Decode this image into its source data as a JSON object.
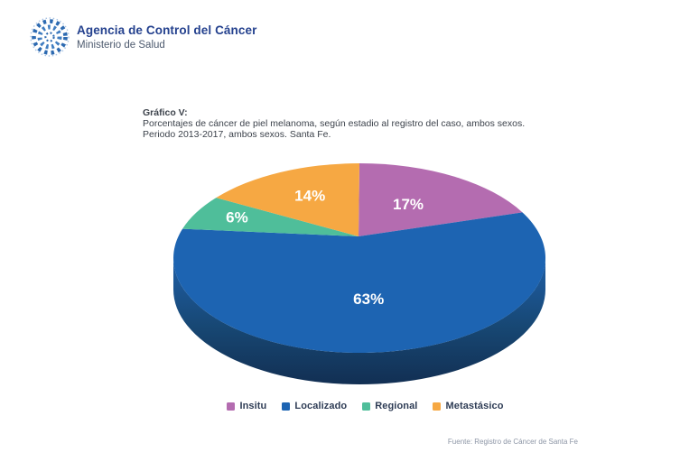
{
  "header": {
    "title": "Agencia de Control del Cáncer",
    "subtitle": "Ministerio de Salud"
  },
  "chart": {
    "heading": "Gráfico V:",
    "description_line1": "Porcentajes de cáncer de piel melanoma, según estadio al registro del caso, ambos sexos.",
    "description_line2": "Periodo 2013-2017, ambos sexos. Santa Fe.",
    "source": "Fuente: Registro de Cáncer de Santa Fe"
  },
  "chart_data": {
    "type": "pie",
    "style": "3d",
    "title": "Porcentajes de cáncer de piel melanoma, según estadio al registro del caso, ambos sexos. Periodo 2013-2017, ambos sexos. Santa Fe.",
    "categories": [
      "Insitu",
      "Localizado",
      "Regional",
      "Metastásico"
    ],
    "values": [
      17,
      63,
      6,
      14
    ],
    "unit": "%",
    "value_labels": [
      "17%",
      "63%",
      "6%",
      "14%"
    ],
    "colors": [
      "#b46cb0",
      "#1d64b2",
      "#4fbe9a",
      "#f6a843"
    ],
    "side_gradient": [
      "#1f5fa7",
      "#174773",
      "#122f53"
    ],
    "label_color": "#ffffff",
    "start_angle_deg": 0,
    "direction": "clockwise",
    "legend_position": "bottom"
  },
  "logo": {
    "name": "agencia-control-cancer-logo",
    "color_dark": "#2d6ab1",
    "color_mid": "#3f7cc0",
    "color_light": "#aac4e4"
  }
}
